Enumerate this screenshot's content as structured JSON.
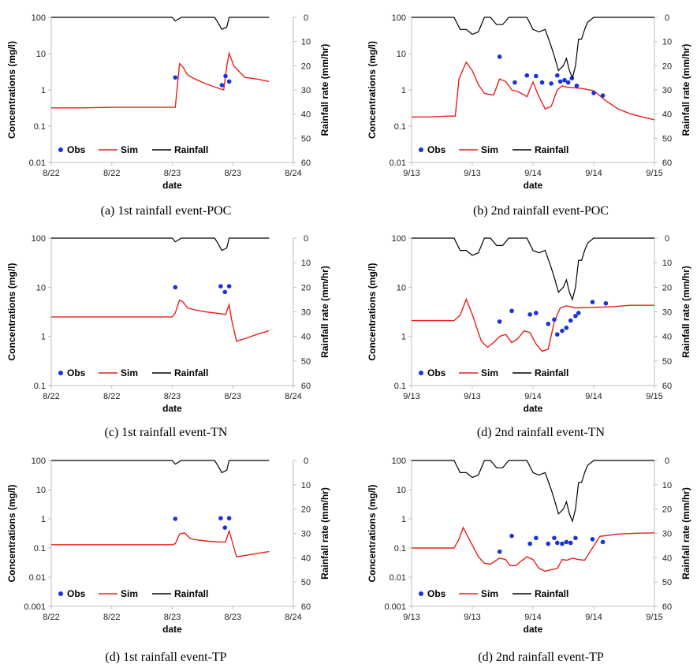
{
  "colors": {
    "obs": "#1a33d9",
    "sim": "#e8201a",
    "rain": "#000000",
    "axis": "#bfbfbf"
  },
  "chart_data": [
    {
      "id": "a",
      "type": "line",
      "caption": "(a)  1st  rainfall  event-POC",
      "xlabel": "date",
      "ylabel": "Concentrations (mg/l)",
      "y2label": "Rainfall rate (mm/hr)",
      "xticks": [
        "8/22",
        "8/22",
        "8/23",
        "8/23",
        "8/24"
      ],
      "ylim_log": [
        0.01,
        100
      ],
      "yticks": [
        "100",
        "10",
        "1",
        "0.1",
        "0.01"
      ],
      "y2lim": [
        0,
        60
      ],
      "y2ticks": [
        "0",
        "10",
        "20",
        "30",
        "40",
        "50",
        "60"
      ],
      "legend": [
        "Obs",
        "Sim",
        "Rainfall"
      ],
      "series": [
        {
          "name": "Sim",
          "x": [
            0,
            0.5,
            1,
            1.5,
            2,
            2.05,
            2.12,
            2.18,
            2.25,
            2.35,
            2.5,
            2.7,
            2.85,
            2.9,
            2.94,
            3.02,
            3.2,
            3.4,
            3.6
          ],
          "y": [
            0.32,
            0.32,
            0.33,
            0.33,
            0.33,
            0.33,
            5.3,
            4.2,
            2.6,
            2.1,
            1.6,
            1.2,
            1.0,
            4.5,
            10.2,
            4.5,
            2.2,
            2.0,
            1.7
          ]
        },
        {
          "name": "Obs",
          "x": [
            2.05,
            2.82,
            2.88,
            2.94
          ],
          "y": [
            2.2,
            1.35,
            2.4,
            1.7
          ]
        },
        {
          "name": "Rainfall",
          "x": [
            0,
            2,
            2.05,
            2.15,
            2.3,
            2.7,
            2.75,
            2.82,
            2.9,
            2.94,
            3.05,
            3.3,
            3.5,
            3.6
          ],
          "y": [
            0,
            0,
            1.5,
            0,
            0,
            0,
            2,
            5,
            4,
            0,
            0,
            0,
            0,
            0
          ]
        }
      ]
    },
    {
      "id": "b",
      "type": "line",
      "caption": "(b)  2nd  rainfall  event-POC",
      "xlabel": "date",
      "ylabel": "Concentrations (mg/l)",
      "y2label": "Rainfall rate (mm/hr)",
      "xticks": [
        "9/13",
        "9/13",
        "9/14",
        "9/14",
        "9/15"
      ],
      "ylim_log": [
        0.01,
        100
      ],
      "yticks": [
        "100",
        "10",
        "1",
        "0.1",
        "0.01"
      ],
      "y2lim": [
        0,
        60
      ],
      "y2ticks": [
        "0",
        "10",
        "20",
        "30",
        "40",
        "50",
        "60"
      ],
      "legend": [
        "Obs",
        "Sim",
        "Rainfall"
      ],
      "series": [
        {
          "name": "Sim",
          "x": [
            0,
            0.3,
            0.6,
            0.72,
            0.78,
            0.9,
            1.0,
            1.1,
            1.2,
            1.35,
            1.45,
            1.55,
            1.65,
            1.75,
            1.9,
            2.0,
            2.05,
            2.12,
            2.2,
            2.3,
            2.4,
            2.48,
            2.55,
            2.65,
            2.8,
            3.0,
            3.2,
            3.4,
            3.6,
            3.8,
            4.0
          ],
          "y": [
            0.18,
            0.18,
            0.19,
            0.19,
            2.0,
            5.8,
            3.4,
            1.4,
            0.8,
            0.72,
            2.0,
            1.7,
            1.0,
            0.9,
            0.65,
            1.65,
            1.0,
            0.55,
            0.3,
            0.35,
            1.0,
            1.3,
            1.2,
            1.15,
            1.1,
            0.95,
            0.5,
            0.3,
            0.22,
            0.18,
            0.15
          ]
        },
        {
          "name": "Obs",
          "x": [
            1.45,
            1.7,
            1.9,
            2.05,
            2.15,
            2.3,
            2.4,
            2.45,
            2.52,
            2.58,
            2.64,
            2.72,
            3.0,
            3.15
          ],
          "y": [
            8.2,
            1.6,
            2.5,
            2.4,
            1.6,
            1.5,
            2.5,
            1.7,
            1.85,
            1.6,
            2.1,
            1.3,
            0.82,
            0.7
          ]
        },
        {
          "name": "Rainfall",
          "x": [
            0,
            0.6,
            0.7,
            0.8,
            0.9,
            1.0,
            1.1,
            1.2,
            1.3,
            1.4,
            1.5,
            1.6,
            1.7,
            1.8,
            1.9,
            2.0,
            2.1,
            2.2,
            2.3,
            2.35,
            2.42,
            2.5,
            2.55,
            2.6,
            2.65,
            2.7,
            2.75,
            2.8,
            2.85,
            2.9,
            3.0,
            3.2,
            3.6,
            4.0
          ],
          "y": [
            0,
            0,
            0,
            5,
            5,
            7,
            6,
            0,
            0,
            3,
            3,
            0,
            0,
            0,
            0,
            5,
            6,
            5,
            12,
            16,
            22,
            20,
            17,
            22,
            25,
            20,
            9,
            9,
            5,
            2,
            0,
            0,
            0,
            0
          ]
        }
      ]
    },
    {
      "id": "c",
      "type": "line",
      "caption": "(c)  1st  rainfall  event-TN",
      "xlabel": "date",
      "ylabel": "Concentrations (mg/l)",
      "y2label": "Rainfall rate (mm/hr)",
      "xticks": [
        "8/22",
        "8/22",
        "8/23",
        "8/23",
        "8/24"
      ],
      "ylim_log": [
        0.1,
        100
      ],
      "yticks": [
        "100",
        "10",
        "1",
        "0.1"
      ],
      "y2lim": [
        0,
        60
      ],
      "y2ticks": [
        "0",
        "10",
        "20",
        "30",
        "40",
        "50",
        "60"
      ],
      "legend": [
        "Obs",
        "Sim",
        "Rainfall"
      ],
      "series": [
        {
          "name": "Sim",
          "x": [
            0,
            1,
            2,
            2.05,
            2.12,
            2.18,
            2.25,
            2.4,
            2.6,
            2.8,
            2.88,
            2.94,
            2.98,
            3.06,
            3.2,
            3.4,
            3.6
          ],
          "y": [
            2.5,
            2.5,
            2.5,
            3.0,
            5.5,
            5.0,
            3.8,
            3.4,
            3.1,
            2.9,
            2.8,
            4.4,
            2.2,
            0.8,
            0.9,
            1.1,
            1.3
          ]
        },
        {
          "name": "Obs",
          "x": [
            2.05,
            2.8,
            2.87,
            2.94
          ],
          "y": [
            10,
            10.5,
            8,
            10.5
          ]
        },
        {
          "name": "Rainfall",
          "x": [
            0,
            2,
            2.05,
            2.15,
            2.3,
            2.7,
            2.75,
            2.82,
            2.9,
            2.94,
            3.05,
            3.3,
            3.5,
            3.6
          ],
          "y": [
            0,
            0,
            1.5,
            0,
            0,
            0,
            2,
            5,
            4,
            0,
            0,
            0,
            0,
            0
          ]
        }
      ]
    },
    {
      "id": "d",
      "type": "line",
      "caption": "(d)  2nd  rainfall  event-TN",
      "xlabel": "date",
      "ylabel": "Concentrations (mg/l)",
      "y2label": "Rainfall rate (mm/hr)",
      "xticks": [
        "9/13",
        "9/13",
        "9/14",
        "9/14",
        "9/15"
      ],
      "ylim_log": [
        0.1,
        100
      ],
      "yticks": [
        "100",
        "10",
        "1",
        "0.1"
      ],
      "y2lim": [
        0,
        60
      ],
      "y2ticks": [
        "0",
        "10",
        "20",
        "30",
        "40",
        "50",
        "60"
      ],
      "legend": [
        "Obs",
        "Sim",
        "Rainfall"
      ],
      "series": [
        {
          "name": "Sim",
          "x": [
            0,
            0.4,
            0.7,
            0.8,
            0.9,
            1.0,
            1.1,
            1.15,
            1.25,
            1.35,
            1.45,
            1.55,
            1.65,
            1.75,
            1.85,
            1.95,
            2.05,
            2.15,
            2.25,
            2.35,
            2.45,
            2.55,
            2.7,
            3.0,
            3.3,
            3.6,
            4.0
          ],
          "y": [
            2.1,
            2.1,
            2.1,
            2.7,
            5.7,
            2.8,
            1.2,
            0.8,
            0.6,
            0.75,
            1.0,
            1.1,
            0.75,
            0.9,
            1.3,
            1.2,
            0.7,
            0.5,
            0.55,
            2.0,
            3.8,
            4.2,
            3.8,
            3.9,
            4.0,
            4.3,
            4.3
          ]
        },
        {
          "name": "Obs",
          "x": [
            1.45,
            1.65,
            1.95,
            2.05,
            2.25,
            2.35,
            2.4,
            2.48,
            2.55,
            2.62,
            2.7,
            2.75,
            2.98,
            3.2
          ],
          "y": [
            2.0,
            3.3,
            2.8,
            3.0,
            1.8,
            2.2,
            1.1,
            1.3,
            1.5,
            2.1,
            2.6,
            3.0,
            5.0,
            4.7
          ]
        },
        {
          "name": "Rainfall",
          "x": [
            0,
            0.6,
            0.7,
            0.8,
            0.9,
            1.0,
            1.1,
            1.2,
            1.3,
            1.4,
            1.5,
            1.6,
            1.7,
            1.8,
            1.9,
            2.0,
            2.1,
            2.2,
            2.3,
            2.35,
            2.42,
            2.5,
            2.55,
            2.6,
            2.65,
            2.7,
            2.75,
            2.8,
            2.85,
            2.9,
            3.0,
            3.2,
            3.6,
            4.0
          ],
          "y": [
            0,
            0,
            0,
            5,
            5,
            7,
            6,
            0,
            0,
            3,
            3,
            0,
            0,
            0,
            0,
            5,
            6,
            5,
            12,
            16,
            22,
            20,
            17,
            22,
            25,
            20,
            9,
            9,
            5,
            2,
            0,
            0,
            0,
            0
          ]
        }
      ]
    },
    {
      "id": "e",
      "type": "line",
      "caption": "(d)  1st  rainfall  event-TP",
      "xlabel": "date",
      "ylabel": "Concentrations (mg/l)",
      "y2label": "Rainfall rate (mm/hr)",
      "xticks": [
        "8/22",
        "8/22",
        "8/23",
        "8/23",
        "8/24"
      ],
      "ylim_log": [
        0.001,
        100
      ],
      "yticks": [
        "100",
        "10",
        "1",
        "0.1",
        "0.01",
        "0.001"
      ],
      "y2lim": [
        0,
        60
      ],
      "y2ticks": [
        "0",
        "10",
        "20",
        "30",
        "40",
        "50",
        "60"
      ],
      "legend": [
        "Obs",
        "Sim",
        "Rainfall"
      ],
      "series": [
        {
          "name": "Sim",
          "x": [
            0,
            1,
            1.5,
            2,
            2.05,
            2.12,
            2.2,
            2.3,
            2.4,
            2.6,
            2.8,
            2.88,
            2.94,
            2.98,
            3.06,
            3.2,
            3.4,
            3.6
          ],
          "y": [
            0.13,
            0.13,
            0.13,
            0.13,
            0.14,
            0.3,
            0.33,
            0.21,
            0.19,
            0.17,
            0.16,
            0.16,
            0.38,
            0.2,
            0.05,
            0.055,
            0.065,
            0.075
          ]
        },
        {
          "name": "Obs",
          "x": [
            2.05,
            2.8,
            2.87,
            2.94
          ],
          "y": [
            1.0,
            1.05,
            0.5,
            1.05
          ]
        },
        {
          "name": "Rainfall",
          "x": [
            0,
            2,
            2.05,
            2.15,
            2.3,
            2.7,
            2.75,
            2.82,
            2.9,
            2.94,
            3.05,
            3.3,
            3.5,
            3.6
          ],
          "y": [
            0,
            0,
            1.5,
            0,
            0,
            0,
            2,
            5,
            4,
            0,
            0,
            0,
            0,
            0
          ]
        }
      ]
    },
    {
      "id": "f",
      "type": "line",
      "caption": "(d)  2nd  rainfall  event-TP",
      "xlabel": "date",
      "ylabel": "Concentrations (mg/l)",
      "y2label": "Rainfall rate (mm/hr)",
      "xticks": [
        "9/13",
        "9/13",
        "9/14",
        "9/14",
        "9/15"
      ],
      "ylim_log": [
        0.001,
        100
      ],
      "yticks": [
        "100",
        "10",
        "1",
        "0.1",
        "0.01",
        "0.001"
      ],
      "y2lim": [
        0,
        60
      ],
      "y2ticks": [
        "0",
        "10",
        "20",
        "30",
        "40",
        "50",
        "60"
      ],
      "legend": [
        "Obs",
        "Sim",
        "Rainfall"
      ],
      "series": [
        {
          "name": "Sim",
          "x": [
            0,
            0.5,
            0.7,
            0.78,
            0.85,
            0.95,
            1.1,
            1.2,
            1.3,
            1.45,
            1.55,
            1.62,
            1.72,
            1.8,
            1.9,
            2.0,
            2.1,
            2.2,
            2.3,
            2.4,
            2.48,
            2.56,
            2.65,
            2.75,
            2.85,
            2.95,
            3.1,
            3.4,
            3.7,
            4.0
          ],
          "y": [
            0.1,
            0.1,
            0.1,
            0.2,
            0.5,
            0.2,
            0.05,
            0.03,
            0.028,
            0.045,
            0.04,
            0.025,
            0.025,
            0.035,
            0.05,
            0.04,
            0.02,
            0.016,
            0.018,
            0.02,
            0.04,
            0.038,
            0.045,
            0.04,
            0.038,
            0.08,
            0.25,
            0.3,
            0.32,
            0.33
          ]
        },
        {
          "name": "Obs",
          "x": [
            1.45,
            1.65,
            1.95,
            2.05,
            2.25,
            2.35,
            2.4,
            2.48,
            2.55,
            2.62,
            2.7,
            2.98,
            3.15
          ],
          "y": [
            0.075,
            0.26,
            0.14,
            0.22,
            0.14,
            0.22,
            0.15,
            0.14,
            0.16,
            0.15,
            0.22,
            0.2,
            0.16
          ]
        },
        {
          "name": "Rainfall",
          "x": [
            0,
            0.6,
            0.7,
            0.8,
            0.9,
            1.0,
            1.1,
            1.2,
            1.3,
            1.4,
            1.5,
            1.6,
            1.7,
            1.8,
            1.9,
            2.0,
            2.1,
            2.2,
            2.3,
            2.35,
            2.42,
            2.5,
            2.55,
            2.6,
            2.65,
            2.7,
            2.75,
            2.8,
            2.85,
            2.9,
            3.0,
            3.2,
            3.6,
            4.0
          ],
          "y": [
            0,
            0,
            0,
            5,
            5,
            7,
            6,
            0,
            0,
            3,
            3,
            0,
            0,
            0,
            0,
            5,
            6,
            5,
            12,
            16,
            22,
            20,
            17,
            22,
            25,
            20,
            9,
            9,
            5,
            2,
            0,
            0,
            0,
            0
          ]
        }
      ]
    }
  ]
}
